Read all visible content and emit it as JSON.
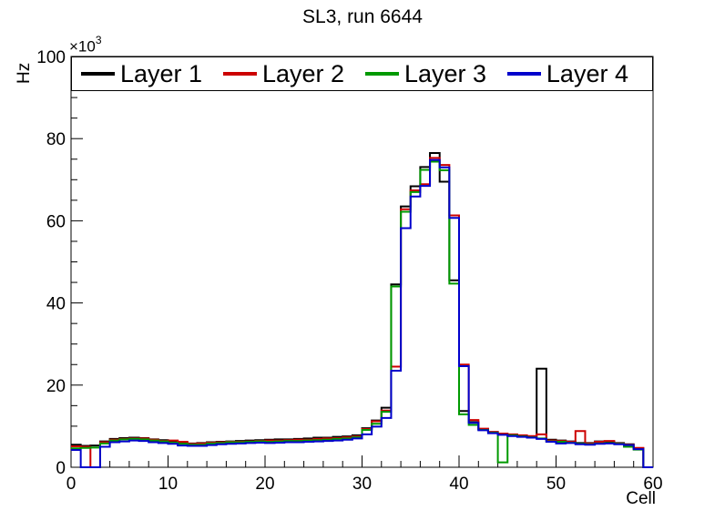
{
  "title": "SL3, run 6644",
  "axes": {
    "x_label": "Cell",
    "y_label": "Hz",
    "y_multiplier_base": "×10",
    "y_multiplier_exp": "3",
    "x_ticks": [
      0,
      10,
      20,
      30,
      40,
      50,
      60
    ],
    "y_ticks": [
      0,
      20,
      40,
      60,
      80,
      100
    ],
    "x_minor_step": 2,
    "y_minor_step": 5
  },
  "legend": [
    {
      "label": "Layer 1",
      "color": "#000000"
    },
    {
      "label": "Layer 2",
      "color": "#cc0000"
    },
    {
      "label": "Layer 3",
      "color": "#009900"
    },
    {
      "label": "Layer 4",
      "color": "#0000cc"
    }
  ],
  "chart_data": {
    "type": "step-histogram",
    "title": "SL3, run 6644",
    "xlabel": "Cell",
    "ylabel": "Hz",
    "y_unit": "×10³ Hz",
    "x_max": 60,
    "y_max": 100,
    "bin_width": 1,
    "series": [
      {
        "name": "Layer 1",
        "color": "#000000",
        "values": [
          5.5,
          5.2,
          5.3,
          6.3,
          6.9,
          7.1,
          7.2,
          7.1,
          6.8,
          6.6,
          6.3,
          5.9,
          5.8,
          5.9,
          6.1,
          6.2,
          6.3,
          6.4,
          6.5,
          6.6,
          6.7,
          6.8,
          6.8,
          6.9,
          7.0,
          7.2,
          7.2,
          7.4,
          7.5,
          7.8,
          9.5,
          11.4,
          14.5,
          44.5,
          63.5,
          68.4,
          73.1,
          76.5,
          69.5,
          45.5,
          13.7,
          11.0,
          9.3,
          8.6,
          8.1,
          7.9,
          7.7,
          7.5,
          24.0,
          6.7,
          6.5,
          6.3,
          5.9,
          5.9,
          6.3,
          6.2,
          5.9,
          5.6,
          4.6,
          0
        ]
      },
      {
        "name": "Layer 2",
        "color": "#cc0000",
        "values": [
          5.1,
          5.0,
          0,
          6.1,
          6.7,
          6.9,
          7.0,
          7.0,
          6.7,
          6.4,
          6.5,
          6.2,
          5.7,
          5.8,
          6.0,
          6.1,
          6.2,
          6.2,
          6.3,
          6.4,
          6.5,
          6.5,
          6.6,
          6.7,
          6.7,
          6.9,
          7.0,
          7.1,
          7.3,
          7.5,
          9.3,
          11.2,
          13.8,
          24.5,
          62.8,
          67.4,
          68.9,
          75.3,
          73.6,
          61.3,
          25.0,
          11.5,
          9.4,
          8.6,
          8.2,
          8.0,
          7.8,
          7.6,
          8.0,
          6.5,
          6.4,
          6.2,
          8.8,
          5.8,
          6.2,
          6.4,
          5.8,
          5.5,
          4.7,
          0
        ]
      },
      {
        "name": "Layer 3",
        "color": "#009900",
        "values": [
          4.6,
          4.7,
          4.8,
          5.8,
          6.5,
          6.8,
          6.9,
          6.8,
          6.5,
          6.3,
          6.0,
          5.7,
          5.5,
          5.5,
          5.8,
          5.9,
          6.1,
          6.1,
          6.2,
          6.3,
          6.2,
          6.3,
          6.4,
          6.4,
          6.5,
          6.6,
          6.7,
          6.9,
          7.0,
          7.3,
          9.1,
          10.6,
          13.5,
          44.0,
          62.2,
          67.0,
          72.4,
          74.4,
          72.3,
          44.7,
          12.9,
          10.3,
          9.1,
          8.4,
          1.2,
          7.8,
          7.5,
          7.3,
          7.0,
          6.3,
          6.2,
          6.0,
          5.7,
          5.6,
          5.8,
          5.9,
          5.7,
          5.0,
          4.3,
          0
        ]
      },
      {
        "name": "Layer 4",
        "color": "#0000cc",
        "values": [
          4.2,
          0,
          0,
          5.0,
          6.1,
          6.3,
          6.5,
          6.4,
          6.1,
          5.9,
          5.7,
          5.3,
          5.2,
          5.2,
          5.4,
          5.6,
          5.7,
          5.8,
          5.9,
          6.0,
          5.9,
          6.0,
          6.1,
          6.1,
          6.2,
          6.3,
          6.4,
          6.5,
          6.7,
          7.0,
          8.0,
          9.9,
          12.0,
          23.5,
          58.2,
          65.9,
          68.5,
          74.8,
          73.0,
          60.7,
          24.6,
          10.8,
          9.0,
          8.3,
          7.9,
          7.6,
          7.4,
          7.2,
          6.9,
          6.2,
          5.8,
          5.9,
          5.6,
          5.5,
          5.7,
          5.8,
          5.6,
          5.4,
          4.4,
          0
        ]
      }
    ]
  }
}
